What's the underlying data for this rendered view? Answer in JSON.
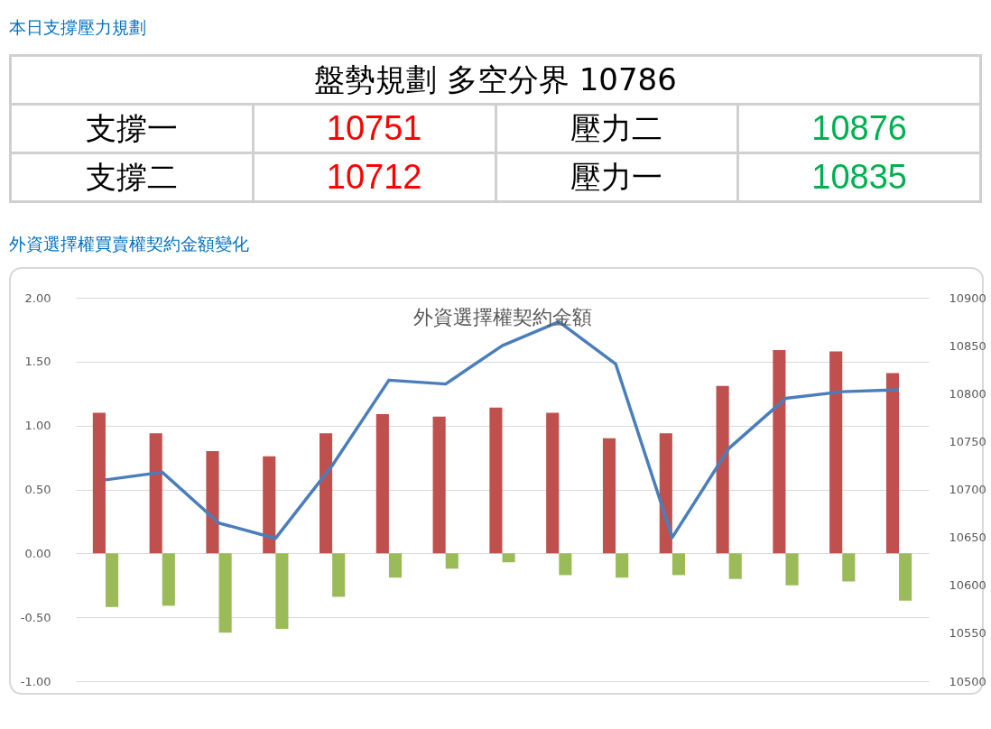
{
  "chart_data": [
    {
      "type": "other",
      "title": "本日支撐壓力規劃",
      "subtitle": "盤勢規劃 多空分界 10786",
      "annotations": [
        "支撐一",
        "10751",
        "壓力二",
        "10876",
        "支撐二",
        "10712",
        "壓力一",
        "10835"
      ],
      "colors": [
        "#000000",
        "#ff0000",
        "#000000",
        "#00b050",
        "#000000",
        "#ff0000",
        "#000000",
        "#00b050"
      ]
    },
    {
      "type": "bar",
      "title": "外資選擇權買賣權契約金額變化",
      "subtitle": "外資選擇權契約金額",
      "categories": [
        null,
        null,
        null,
        null,
        null,
        null,
        null,
        null,
        null,
        null,
        null,
        null,
        null,
        null,
        null
      ],
      "series": [
        {
          "color": "#c0504d",
          "values": [
            1.1,
            0.94,
            0.8,
            0.76,
            0.94,
            1.09,
            1.07,
            1.14,
            1.1,
            0.9,
            0.94,
            1.31,
            1.59,
            1.58,
            1.41
          ]
        },
        {
          "color": "#9bbb59",
          "values": [
            -0.42,
            -0.41,
            -0.62,
            -0.59,
            -0.34,
            -0.19,
            -0.12,
            -0.07,
            -0.17,
            -0.19,
            -0.17,
            -0.2,
            -0.25,
            -0.22,
            -0.37
          ]
        },
        {
          "type": "line",
          "axis": "y2",
          "color": "#4a7ebb",
          "values": [
            10710,
            10718,
            10665,
            10649,
            10725,
            10814,
            10810,
            10850,
            10875,
            10831,
            10650,
            10743,
            10795,
            10802,
            10804
          ]
        }
      ],
      "ylim": [
        -1,
        2
      ],
      "yticks": [
        {
          "value": -1,
          "label": "-1.00"
        },
        {
          "value": -0.5,
          "label": "-0.50"
        },
        {
          "value": 0,
          "label": "0.00"
        },
        {
          "value": 0.5,
          "label": "0.50"
        },
        {
          "value": 1,
          "label": "1.00"
        },
        {
          "value": 1.5,
          "label": "1.50"
        },
        {
          "value": 2,
          "label": "2.00"
        }
      ],
      "y2lim": [
        10500,
        10900
      ],
      "y2ticks": [
        10500,
        10550,
        10600,
        10650,
        10700,
        10750,
        10800,
        10850,
        10900
      ],
      "grid": "y",
      "legend": false,
      "line_style": "solid",
      "marker": "none"
    }
  ]
}
